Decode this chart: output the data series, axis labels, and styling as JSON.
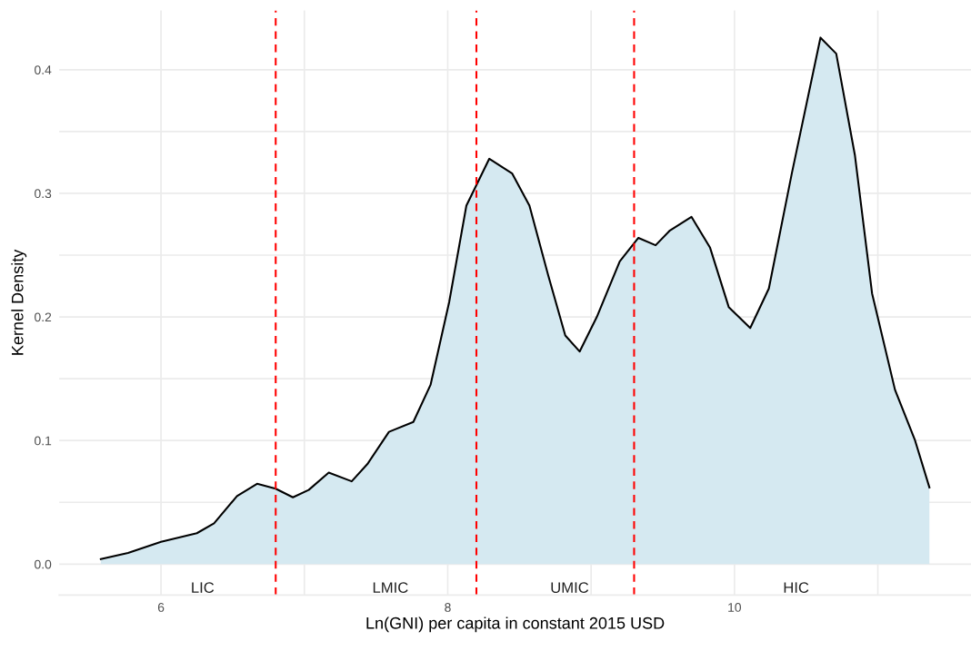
{
  "chart_data": {
    "type": "area",
    "xlabel": "Ln(GNI) per capita in constant 2015 USD",
    "ylabel": "Kernel Density",
    "series": [
      {
        "color": "#d5e9f1",
        "x": [
          5.58,
          5.77,
          6.0,
          6.25,
          6.37,
          6.53,
          6.67,
          6.8,
          6.92,
          7.03,
          7.17,
          7.33,
          7.44,
          7.59,
          7.76,
          7.88,
          8.01,
          8.13,
          8.29,
          8.45,
          8.57,
          8.7,
          8.82,
          8.92,
          9.04,
          9.2,
          9.33,
          9.45,
          9.55,
          9.7,
          9.83,
          9.96,
          10.11,
          10.24,
          10.4,
          10.6,
          10.71,
          10.84,
          10.96,
          11.12,
          11.26,
          11.36
        ],
        "values": [
          0.004,
          0.009,
          0.018,
          0.025,
          0.033,
          0.055,
          0.065,
          0.061,
          0.054,
          0.06,
          0.074,
          0.067,
          0.081,
          0.107,
          0.115,
          0.145,
          0.212,
          0.29,
          0.328,
          0.316,
          0.29,
          0.234,
          0.185,
          0.172,
          0.2,
          0.245,
          0.264,
          0.258,
          0.27,
          0.281,
          0.256,
          0.208,
          0.191,
          0.223,
          0.316,
          0.426,
          0.413,
          0.331,
          0.219,
          0.141,
          0.1,
          0.062
        ]
      }
    ],
    "xlim": [
      5.29,
      11.65
    ],
    "ylim": [
      -0.025,
      0.448
    ],
    "xticks": [
      6,
      {
        "value": 7,
        "label": null
      },
      8,
      {
        "value": 9,
        "label": null
      },
      10,
      {
        "value": 11,
        "label": null
      }
    ],
    "yticks": [
      {
        "value": 0.0,
        "label": "0.0"
      },
      {
        "value": 0.05,
        "label": null
      },
      0.1,
      {
        "value": 0.15,
        "label": null
      },
      0.2,
      {
        "value": 0.25,
        "label": null
      },
      0.3,
      {
        "value": 0.35,
        "label": null
      },
      0.4
    ],
    "grid": true,
    "ref_lines": [
      {
        "axis": "x",
        "value": 6.8,
        "color": "#ff0000",
        "line_style": "dashed"
      },
      {
        "axis": "x",
        "value": 8.2,
        "color": "#ff0000",
        "line_style": "dashed"
      },
      {
        "axis": "x",
        "value": 9.3,
        "color": "#ff0000",
        "line_style": "dashed"
      }
    ],
    "annotations": [
      "LIC",
      "LMIC",
      "UMIC",
      "HIC"
    ]
  }
}
